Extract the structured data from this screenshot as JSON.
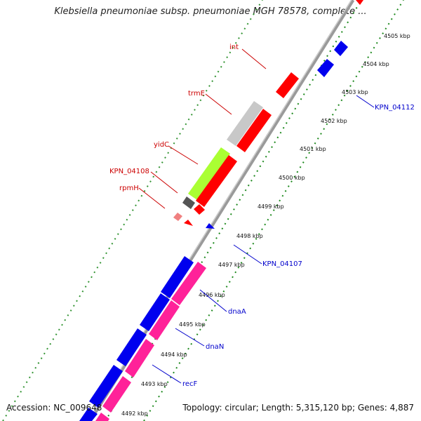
{
  "title": "Klebsiella pneumoniae subsp. pneumoniae MGH 78578, complete ...",
  "footer": {
    "accession": "Accession: NC_009648",
    "summary": "Topology: circular; Length: 5,315,120 bp; Genes: 4,887"
  },
  "colors": {
    "backbone": "#a0a0a0",
    "ticks": "#1f8a1f",
    "label_red": "#cc0000",
    "label_blue": "#0000cc",
    "gene_red": "#ff0000",
    "gene_blue": "#0000ee",
    "gene_pink": "#ff2299",
    "gene_lime": "#aaff33",
    "gene_grey": "#c8c8c8",
    "gene_darkgrey": "#555555"
  },
  "kbp_ticks": [
    "4492 kbp",
    "4493 kbp",
    "4494 kbp",
    "4495 kbp",
    "4496 kbp",
    "4497 kbp",
    "4498 kbp",
    "4499 kbp",
    "4500 kbp",
    "4501 kbp",
    "4502 kbp",
    "4503 kbp",
    "4504 kbp",
    "4505 kbp"
  ],
  "gene_labels": {
    "int": "int",
    "trmE": "trmE",
    "yidC": "yidC",
    "KPN_04108": "KPN_04108",
    "rpmH": "rpmH",
    "KPN_04112": "KPN_04112",
    "KPN_04107": "KPN_04107",
    "dnaA": "dnaA",
    "dnaN": "dnaN",
    "recF": "recF"
  }
}
